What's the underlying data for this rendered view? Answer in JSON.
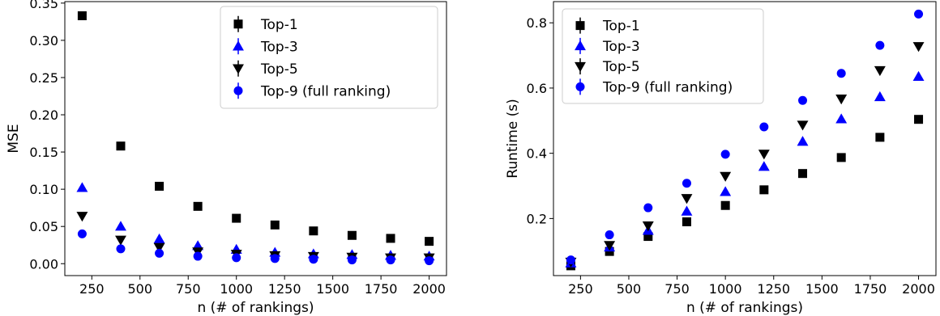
{
  "chart_data": [
    {
      "type": "scatter",
      "xlabel": "n (# of rankings)",
      "ylabel": "MSE",
      "xlim": [
        110,
        2090
      ],
      "ylim": [
        -0.016,
        0.352
      ],
      "xticks": [
        250,
        500,
        750,
        1000,
        1250,
        1500,
        1750,
        2000
      ],
      "xtick_labels": [
        "250",
        "500",
        "750",
        "1000",
        "1250",
        "1500",
        "1750",
        "2000"
      ],
      "yticks": [
        0.0,
        0.05,
        0.1,
        0.15,
        0.2,
        0.25,
        0.3,
        0.35
      ],
      "ytick_labels": [
        "0.00",
        "0.05",
        "0.10",
        "0.15",
        "0.20",
        "0.25",
        "0.30",
        "0.35"
      ],
      "grid": false,
      "legend": "top-right",
      "x": [
        200,
        400,
        600,
        800,
        1000,
        1200,
        1400,
        1600,
        1800,
        2000
      ],
      "series": [
        {
          "name": "Top-1",
          "marker": "square",
          "color": "#000000",
          "values": [
            0.333,
            0.158,
            0.104,
            0.077,
            0.061,
            0.052,
            0.044,
            0.038,
            0.034,
            0.03
          ]
        },
        {
          "name": "Top-3",
          "marker": "triangle-up",
          "color": "#0000ff",
          "values": [
            0.102,
            0.05,
            0.033,
            0.024,
            0.019,
            0.015,
            0.013,
            0.012,
            0.011,
            0.01
          ]
        },
        {
          "name": "Top-5",
          "marker": "triangle-down",
          "color": "#000000",
          "values": [
            0.064,
            0.032,
            0.022,
            0.016,
            0.013,
            0.011,
            0.01,
            0.009,
            0.008,
            0.008
          ]
        },
        {
          "name": "Top-9 (full ranking)",
          "marker": "circle",
          "color": "#0000ff",
          "values": [
            0.04,
            0.02,
            0.014,
            0.01,
            0.008,
            0.007,
            0.006,
            0.005,
            0.005,
            0.004
          ]
        }
      ]
    },
    {
      "type": "scatter",
      "xlabel": "n (# of rankings)",
      "ylabel": "Runtime (s)",
      "xlim": [
        110,
        2090
      ],
      "ylim": [
        0.025,
        0.865
      ],
      "xticks": [
        250,
        500,
        750,
        1000,
        1250,
        1500,
        1750,
        2000
      ],
      "xtick_labels": [
        "250",
        "500",
        "750",
        "1000",
        "1250",
        "1500",
        "1750",
        "2000"
      ],
      "yticks": [
        0.2,
        0.4,
        0.6,
        0.8
      ],
      "ytick_labels": [
        "0.2",
        "0.4",
        "0.6",
        "0.8"
      ],
      "grid": false,
      "legend": "top-left",
      "x": [
        200,
        400,
        600,
        800,
        1000,
        1200,
        1400,
        1600,
        1800,
        2000
      ],
      "series": [
        {
          "name": "Top-1",
          "marker": "square",
          "color": "#000000",
          "values": [
            0.055,
            0.099,
            0.145,
            0.19,
            0.24,
            0.288,
            0.338,
            0.387,
            0.449,
            0.504
          ]
        },
        {
          "name": "Top-3",
          "marker": "triangle-up",
          "color": "#0000ff",
          "values": [
            0.063,
            0.112,
            0.163,
            0.222,
            0.282,
            0.359,
            0.436,
            0.505,
            0.573,
            0.635
          ]
        },
        {
          "name": "Top-5",
          "marker": "triangle-down",
          "color": "#000000",
          "values": [
            0.067,
            0.118,
            0.178,
            0.262,
            0.33,
            0.398,
            0.487,
            0.567,
            0.654,
            0.728
          ]
        },
        {
          "name": "Top-9 (full ranking)",
          "marker": "circle",
          "color": "#0000ff",
          "values": [
            0.073,
            0.15,
            0.233,
            0.308,
            0.397,
            0.481,
            0.562,
            0.645,
            0.731,
            0.827
          ]
        }
      ]
    }
  ]
}
